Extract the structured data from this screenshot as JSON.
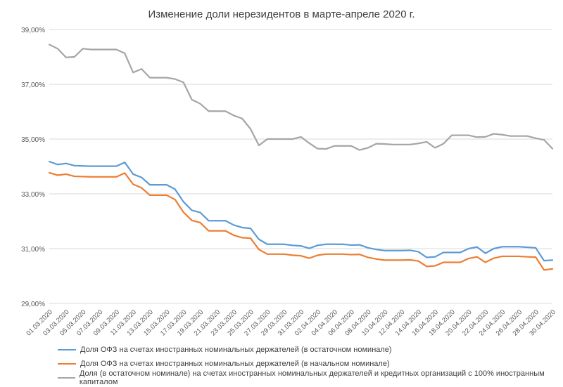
{
  "chart_data": {
    "type": "line",
    "title": "Изменение доли нерезидентов в марте-апреле 2020 г.",
    "xlabel": "",
    "ylabel": "",
    "ylim": [
      29,
      39
    ],
    "y_ticks": [
      "29,00%",
      "31,00%",
      "33,00%",
      "35,00%",
      "37,00%",
      "39,00%"
    ],
    "y_tick_values": [
      29,
      31,
      33,
      35,
      37,
      39
    ],
    "grid": true,
    "legend_position": "bottom",
    "x": [
      "01.03.2020",
      "02.03.2020",
      "03.03.2020",
      "04.03.2020",
      "05.03.2020",
      "06.03.2020",
      "07.03.2020",
      "08.03.2020",
      "09.03.2020",
      "10.03.2020",
      "11.03.2020",
      "12.03.2020",
      "13.03.2020",
      "14.03.2020",
      "15.03.2020",
      "16.03.2020",
      "17.03.2020",
      "18.03.2020",
      "19.03.2020",
      "20.03.2020",
      "21.03.2020",
      "22.03.2020",
      "23.03.2020",
      "24.03.2020",
      "25.03.2020",
      "26.03.2020",
      "27.03.2020",
      "28.03.2020",
      "29.03.2020",
      "30.03.2020",
      "31.03.2020",
      "01.04.2020",
      "02.04.2020",
      "03.04.2020",
      "04.04.2020",
      "05.04.2020",
      "06.04.2020",
      "07.04.2020",
      "08.04.2020",
      "09.04.2020",
      "10.04.2020",
      "11.04.2020",
      "12.04.2020",
      "13.04.2020",
      "14.04.2020",
      "15.04.2020",
      "16.04.2020",
      "17.04.2020",
      "18.04.2020",
      "19.04.2020",
      "20.04.2020",
      "21.04.2020",
      "22.04.2020",
      "23.04.2020",
      "24.04.2020",
      "25.04.2020",
      "26.04.2020",
      "27.04.2020",
      "28.04.2020",
      "29.04.2020",
      "30.04.2020"
    ],
    "x_tick_labels": [
      "01.03.2020",
      "03.03.2020",
      "05.03.2020",
      "07.03.2020",
      "09.03.2020",
      "11.03.2020",
      "13.03.2020",
      "15.03.2020",
      "17.03.2020",
      "19.03.2020",
      "21.03.2020",
      "23.03.2020",
      "25.03.2020",
      "27.03.2020",
      "29.03.2020",
      "31.03.2020",
      "02.04.2020",
      "04.04.2020",
      "06.04.2020",
      "08.04.2020",
      "10.04.2020",
      "12.04.2020",
      "14.04.2020",
      "16.04.2020",
      "18.04.2020",
      "20.04.2020",
      "22.04.2020",
      "24.04.2020",
      "26.04.2020",
      "28.04.2020",
      "30.04.2020"
    ],
    "series": [
      {
        "name": "Доля ОФЗ на счетах иностранных номинальных держателей (в остаточном номинале)",
        "color": "#5B9BD5",
        "values": [
          34.18,
          34.07,
          34.11,
          34.03,
          34.02,
          34.01,
          34.01,
          34.01,
          34.01,
          34.15,
          33.72,
          33.6,
          33.33,
          33.33,
          33.33,
          33.17,
          32.71,
          32.4,
          32.32,
          32.02,
          32.02,
          32.02,
          31.86,
          31.77,
          31.74,
          31.34,
          31.16,
          31.16,
          31.16,
          31.12,
          31.1,
          31.01,
          31.12,
          31.16,
          31.16,
          31.16,
          31.13,
          31.14,
          31.03,
          30.97,
          30.93,
          30.93,
          30.93,
          30.94,
          30.89,
          30.68,
          30.7,
          30.86,
          30.86,
          30.86,
          31.0,
          31.06,
          30.83,
          31.0,
          31.07,
          31.07,
          31.07,
          31.05,
          31.03,
          30.56,
          30.58
        ]
      },
      {
        "name": "Доля ОФЗ на счетах иностранных номинальных держателей (в начальном номинале)",
        "color": "#ED7D31",
        "values": [
          33.77,
          33.68,
          33.72,
          33.64,
          33.63,
          33.62,
          33.62,
          33.62,
          33.62,
          33.76,
          33.35,
          33.22,
          32.95,
          32.95,
          32.95,
          32.79,
          32.33,
          32.03,
          31.95,
          31.65,
          31.65,
          31.65,
          31.49,
          31.4,
          31.38,
          30.97,
          30.8,
          30.8,
          30.8,
          30.76,
          30.74,
          30.65,
          30.76,
          30.8,
          30.8,
          30.8,
          30.78,
          30.79,
          30.68,
          30.62,
          30.58,
          30.58,
          30.58,
          30.59,
          30.55,
          30.35,
          30.37,
          30.5,
          30.5,
          30.5,
          30.64,
          30.7,
          30.5,
          30.65,
          30.72,
          30.72,
          30.72,
          30.7,
          30.69,
          30.22,
          30.26
        ]
      },
      {
        "name": "Доля (в остаточном номинале) на счетах иностранных номинальных держателей и кредитных организаций с 100% иностранным капиталом",
        "color": "#A5A5A5",
        "values": [
          38.45,
          38.3,
          37.98,
          38.0,
          38.3,
          38.27,
          38.27,
          38.27,
          38.27,
          38.13,
          37.43,
          37.56,
          37.24,
          37.24,
          37.24,
          37.19,
          37.07,
          36.44,
          36.29,
          36.02,
          36.02,
          36.02,
          35.86,
          35.75,
          35.37,
          34.77,
          35.0,
          35.0,
          35.0,
          35.0,
          35.08,
          34.85,
          34.65,
          34.64,
          34.75,
          34.75,
          34.75,
          34.6,
          34.68,
          34.83,
          34.82,
          34.8,
          34.8,
          34.8,
          34.84,
          34.9,
          34.68,
          34.83,
          35.14,
          35.14,
          35.14,
          35.07,
          35.08,
          35.19,
          35.16,
          35.11,
          35.11,
          35.11,
          35.03,
          34.97,
          34.65
        ]
      }
    ]
  }
}
